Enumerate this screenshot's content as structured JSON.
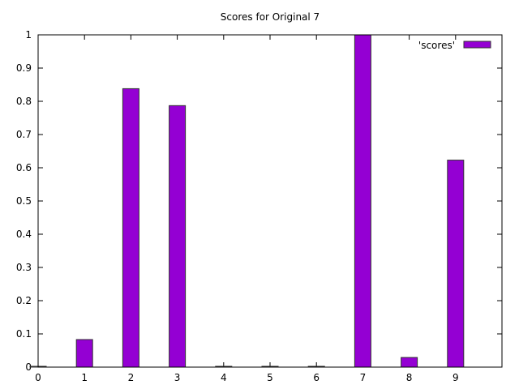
{
  "chart_data": {
    "type": "bar",
    "title": "Scores for Original 7",
    "xlabel": "",
    "ylabel": "",
    "x": [
      0,
      1,
      2,
      3,
      4,
      5,
      6,
      7,
      8,
      9
    ],
    "series": [
      {
        "name": "'scores'",
        "values": [
          0.002,
          0.083,
          0.838,
          0.787,
          0.001,
          0.001,
          0.001,
          1.0,
          0.029,
          0.623
        ],
        "color": "#9400d3"
      }
    ],
    "xlim": [
      0,
      10
    ],
    "ylim": [
      0,
      1
    ],
    "xticks": [
      "0",
      "1",
      "2",
      "3",
      "4",
      "5",
      "6",
      "7",
      "8",
      "9"
    ],
    "yticks": [
      "0",
      "0.1",
      "0.2",
      "0.3",
      "0.4",
      "0.5",
      "0.6",
      "0.7",
      "0.8",
      "0.9",
      "1"
    ],
    "grid": false,
    "legend_position": "top-right"
  }
}
